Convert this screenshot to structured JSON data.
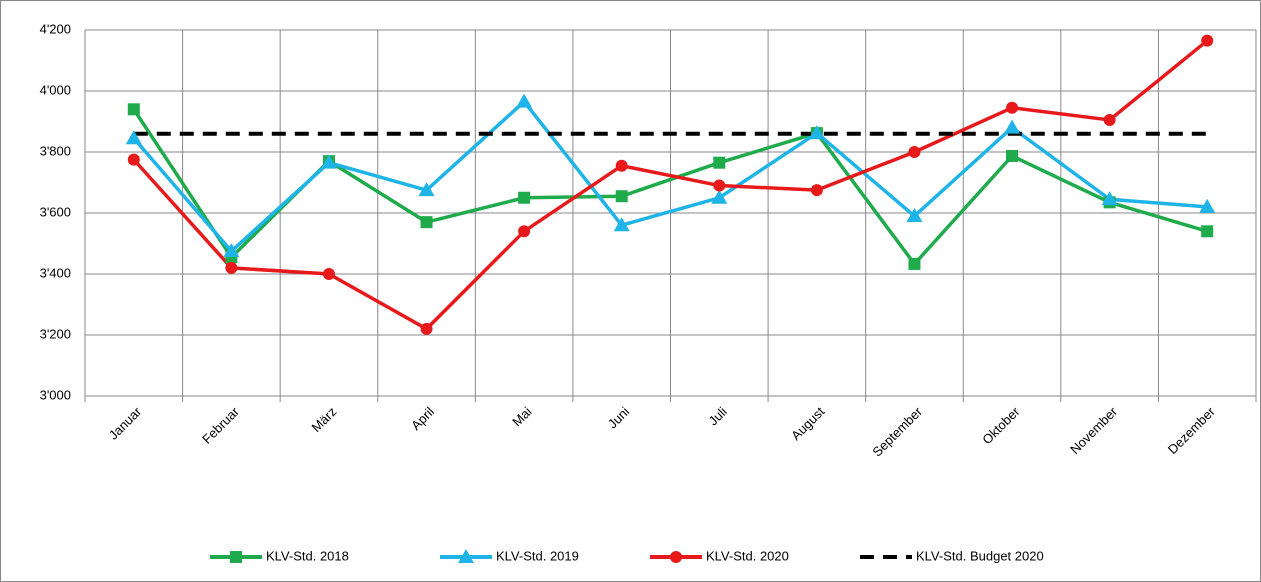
{
  "chart_data": {
    "type": "line",
    "categories": [
      "Januar",
      "Februar",
      "März",
      "April",
      "Mai",
      "Juni",
      "Juli",
      "August",
      "September",
      "Oktober",
      "November",
      "Dezember"
    ],
    "series": [
      {
        "name": "KLV-Std. 2018",
        "color": "#1fab4b",
        "marker": "square",
        "values": [
          3940,
          3455,
          3770,
          3570,
          3650,
          3655,
          3765,
          3862,
          3433,
          3787,
          3635,
          3540
        ]
      },
      {
        "name": "KLV-Std. 2019",
        "color": "#1fb4e8",
        "marker": "triangle",
        "values": [
          3845,
          3475,
          3765,
          3675,
          3965,
          3560,
          3650,
          3862,
          3590,
          3880,
          3645,
          3620
        ]
      },
      {
        "name": "KLV-Std. 2020",
        "color": "#e8191b",
        "marker": "circle",
        "values": [
          3775,
          3420,
          3400,
          3220,
          3540,
          3755,
          3690,
          3675,
          3800,
          3945,
          3905,
          4165
        ]
      },
      {
        "name": "KLV-Std. Budget 2020",
        "color": "#000000",
        "dashed": true,
        "values": [
          3860,
          3860,
          3860,
          3860,
          3860,
          3860,
          3860,
          3860,
          3860,
          3860,
          3860,
          3860
        ]
      }
    ],
    "ylim": [
      3000,
      4200
    ],
    "yticks": [
      {
        "value": 3000,
        "label": "3'000"
      },
      {
        "value": 3200,
        "label": "3'200"
      },
      {
        "value": 3400,
        "label": "3'400"
      },
      {
        "value": 3600,
        "label": "3'600"
      },
      {
        "value": 3800,
        "label": "3'800"
      },
      {
        "value": 4000,
        "label": "4'000"
      },
      {
        "value": 4200,
        "label": "4'200"
      }
    ],
    "grid": true,
    "legend": "bottom"
  }
}
